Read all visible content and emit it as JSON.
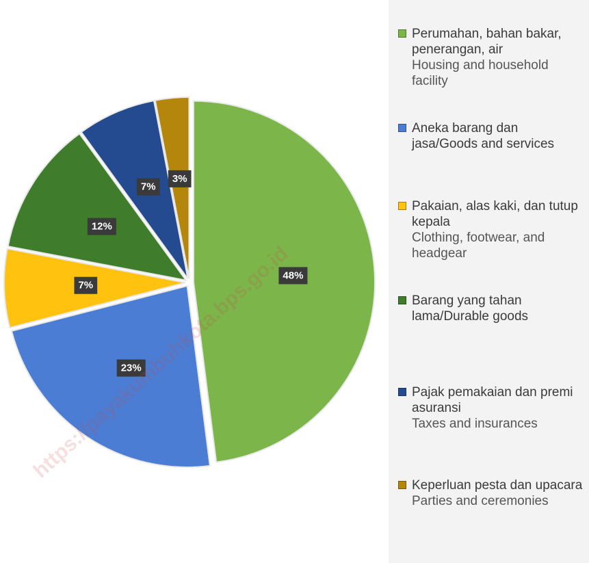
{
  "chart_data": {
    "type": "pie",
    "categories": [
      "Perumahan, bahan bakar, penerangan, air",
      "Aneka barang dan jasa/Goods and services",
      "Pakaian, alas kaki, dan tutup kepala",
      "Barang yang tahan lama/Durable goods",
      "Pajak pemakaian dan premi asuransi",
      "Keperluan pesta dan upacara"
    ],
    "categories_en": [
      "Housing and household facility",
      null,
      "Clothing, footwear, and headgear",
      null,
      "Taxes and insurances",
      "Parties and ceremonies"
    ],
    "values": [
      48,
      23,
      7,
      12,
      7,
      3
    ],
    "value_labels": [
      "48%",
      "23%",
      "7%",
      "12%",
      "7%",
      "3%"
    ],
    "colors": [
      "#7cb54a",
      "#4a7dd3",
      "#ffc20e",
      "#3f7d2c",
      "#244a8f",
      "#b5860c"
    ],
    "watermark": "https://payakumbuhkota.bps.go.id"
  }
}
